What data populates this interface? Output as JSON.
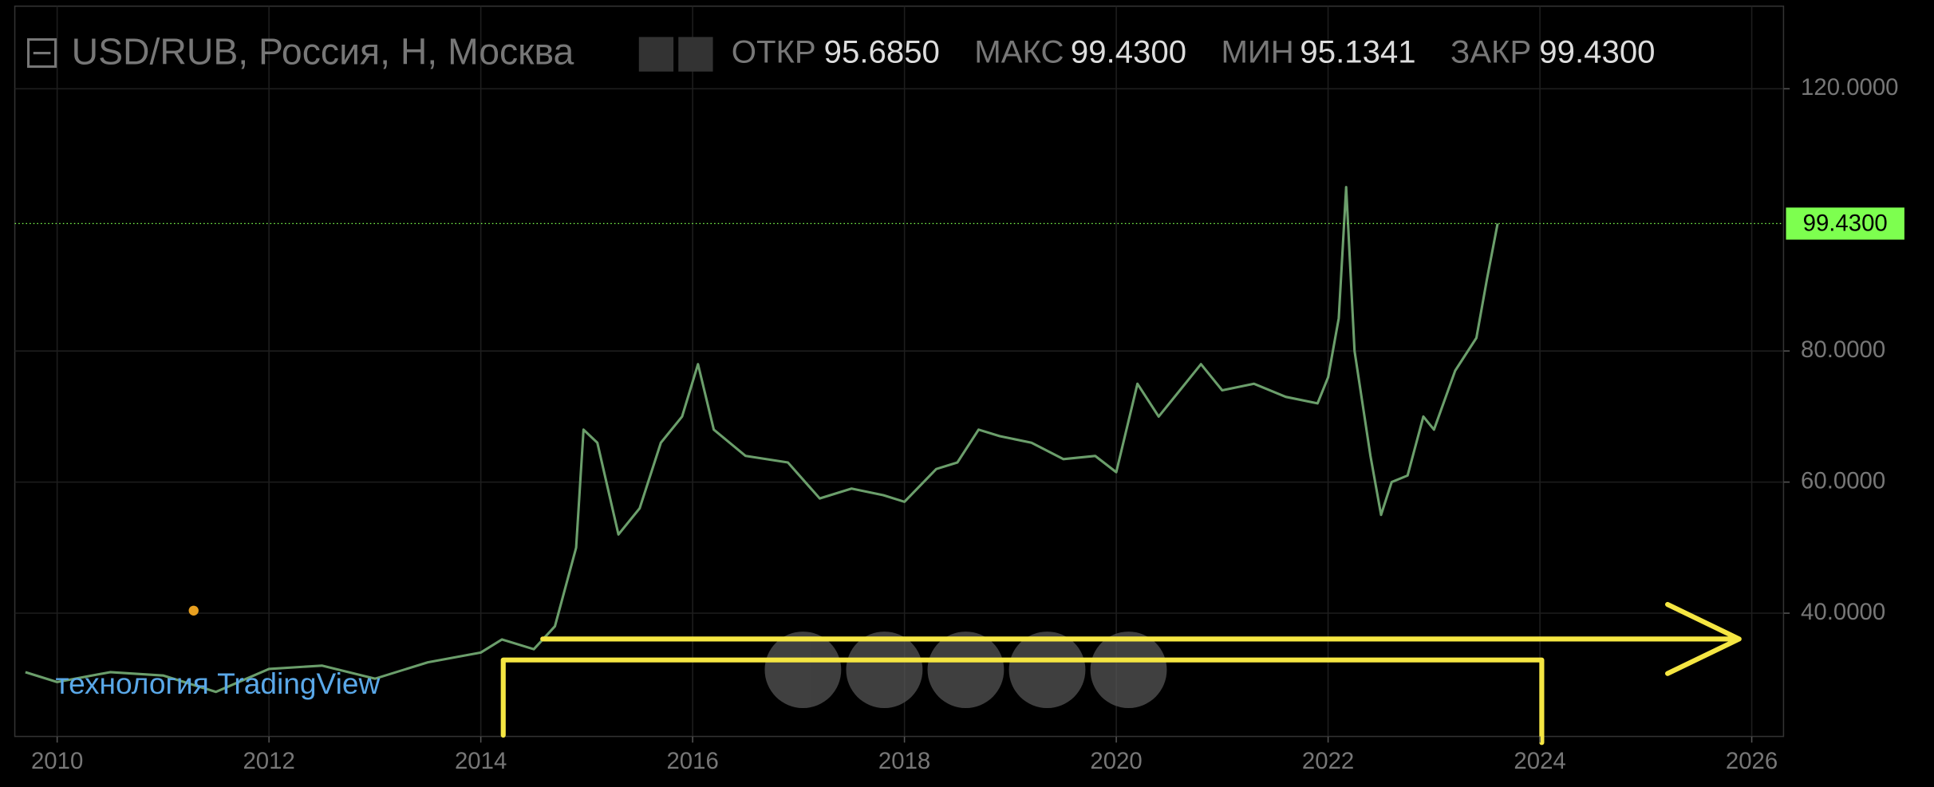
{
  "chart_data": {
    "type": "line",
    "header": {
      "title": "USD/RUB, Россия, H, Москва",
      "stats": [
        {
          "label": "ОТКР",
          "value": "95.6850"
        },
        {
          "label": "МАКС",
          "value": "99.4300"
        },
        {
          "label": "МИН",
          "value": "95.1341"
        },
        {
          "label": "ЗАКР",
          "value": "99.4300"
        }
      ]
    },
    "watermark": "технология TradingView",
    "x": [
      2009.7,
      2010.0,
      2010.5,
      2011.0,
      2011.5,
      2012.0,
      2012.5,
      2013.0,
      2013.5,
      2014.0,
      2014.2,
      2014.5,
      2014.7,
      2014.9,
      2014.97,
      2015.1,
      2015.3,
      2015.5,
      2015.7,
      2015.9,
      2016.05,
      2016.2,
      2016.5,
      2016.9,
      2017.2,
      2017.5,
      2017.8,
      2018.0,
      2018.3,
      2018.5,
      2018.7,
      2018.9,
      2019.2,
      2019.5,
      2019.8,
      2020.0,
      2020.2,
      2020.4,
      2020.6,
      2020.8,
      2021.0,
      2021.3,
      2021.6,
      2021.9,
      2022.0,
      2022.1,
      2022.17,
      2022.25,
      2022.4,
      2022.5,
      2022.6,
      2022.75,
      2022.9,
      2023.0,
      2023.2,
      2023.4,
      2023.5,
      2023.6
    ],
    "series": [
      {
        "name": "USD/RUB",
        "color": "#6b9e6b",
        "values": [
          31,
          29.5,
          31,
          30.5,
          28,
          31.5,
          32,
          30,
          32.5,
          34,
          36,
          34.5,
          38,
          50,
          68,
          66,
          52,
          56,
          66,
          70,
          78,
          68,
          64,
          63,
          57.5,
          59,
          58,
          57,
          62,
          63,
          68,
          67,
          66,
          63.5,
          64,
          61.5,
          75,
          70,
          74,
          78,
          74,
          75,
          73,
          72,
          76,
          85,
          105,
          80,
          64,
          55,
          60,
          61,
          70,
          68,
          77,
          82,
          91,
          99.43
        ]
      }
    ],
    "price_line": {
      "value": 99.43,
      "label": "99.4300",
      "color": "#7dff4f"
    },
    "xlim": [
      2009.6,
      2026.3
    ],
    "xticks": [
      2010,
      2012,
      2014,
      2016,
      2018,
      2020,
      2022,
      2024,
      2026
    ],
    "ylim": [
      21.2,
      132.6
    ],
    "yticks": [
      {
        "value": 40,
        "label": "40.0000"
      },
      {
        "value": 60,
        "label": "60.0000"
      },
      {
        "value": 80,
        "label": "80.0000"
      },
      {
        "value": 120,
        "label": "120.0000"
      }
    ],
    "grid": true
  }
}
